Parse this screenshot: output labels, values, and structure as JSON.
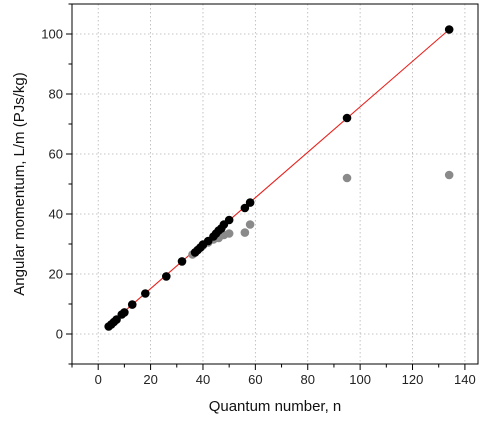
{
  "chart_data": {
    "type": "scatter",
    "xlabel": "Quantum number, n",
    "ylabel": "Angular momentum, L/m (PJs/kg)",
    "xlim": [
      -10,
      145
    ],
    "ylim": [
      -10,
      110
    ],
    "x_ticks": [
      0,
      20,
      40,
      60,
      80,
      100,
      120,
      140
    ],
    "y_ticks": [
      0,
      20,
      40,
      60,
      80,
      100
    ],
    "grid": true,
    "series": [
      {
        "color": "#8a8a8a",
        "marker": "circle",
        "x": [
          36,
          38,
          40,
          42,
          44,
          46,
          48,
          50,
          56,
          58,
          95,
          134
        ],
        "y": [
          26.5,
          28.0,
          29.5,
          30.5,
          31.5,
          32.0,
          33.0,
          33.5,
          33.8,
          36.5,
          52.0,
          53.0
        ]
      },
      {
        "color": "#000000",
        "marker": "circle",
        "x": [
          4,
          5,
          6,
          7,
          9,
          10,
          13,
          18,
          26,
          32,
          37,
          38,
          39,
          40,
          42,
          44,
          45,
          46,
          47,
          48,
          50,
          56,
          58,
          95,
          134
        ],
        "y": [
          2.5,
          3.2,
          4.0,
          4.8,
          6.5,
          7.2,
          9.8,
          13.5,
          19.2,
          24.2,
          27.2,
          28.0,
          28.8,
          29.8,
          31.0,
          32.5,
          33.5,
          34.5,
          35.2,
          36.5,
          38.0,
          42.0,
          43.8,
          72.0,
          101.5
        ]
      }
    ],
    "fit_line": {
      "color": "#e8221e",
      "x": [
        4,
        134
      ],
      "y": [
        3.0,
        101.5
      ]
    }
  }
}
